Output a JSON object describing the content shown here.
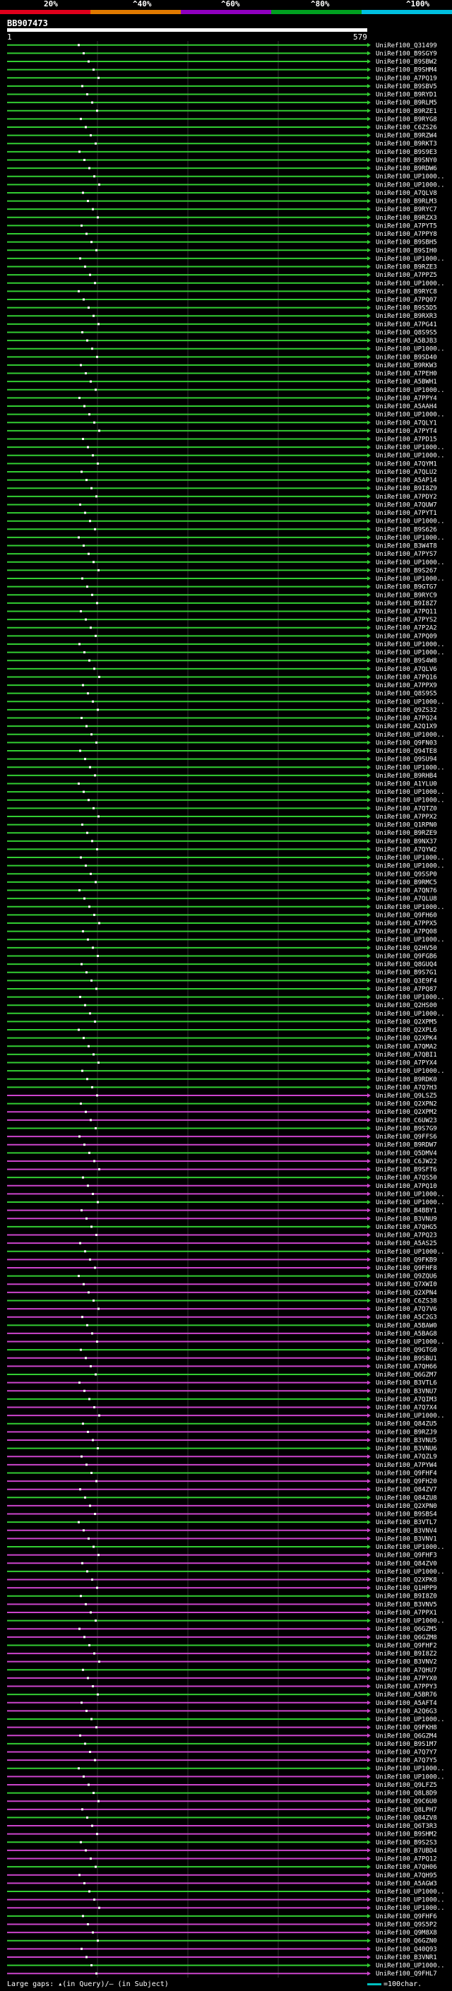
{
  "scale": {
    "labels": [
      "20%",
      "^40%",
      "^60%",
      "^80%",
      "^100%"
    ],
    "colors": [
      "#e0001c",
      "#e07a00",
      "#9000c0",
      "#00a020",
      "#00c0e0"
    ]
  },
  "query": {
    "title": "BB907473",
    "start_label": "1",
    "end_label": "579"
  },
  "legend": {
    "text": "Large gaps: ▴(in Query)/– (in Subject)",
    "right_text": "=100char."
  },
  "colors": {
    "green": "#32cd32",
    "magenta": "#cc44cc"
  },
  "chart_data": {
    "type": "alignment",
    "query_length": 579,
    "hits": [
      "Q31499",
      "B9SGY9",
      "B9SBW2",
      "B9SHM4",
      "A7PQ19",
      "B9SBV5",
      "B9RYD1",
      "B9RLM5",
      "B9RZE1",
      "B9RYG8",
      "C6ZS26",
      "B9RZW4",
      "B9RKT3",
      "B9S9E3",
      "B9SNY0",
      "B9RDW6",
      "UP1000..",
      "UP1000..",
      "A7QLV8",
      "B9RLM3",
      "B9RYC7",
      "B9RZX3",
      "A7PYT5",
      "A7PPY8",
      "B9SBH5",
      "B9SIH0",
      "UP1000..",
      "B9RZE3",
      "A7PPZ5",
      "UP1000..",
      "B9RYC8",
      "A7PQ07",
      "B9S5D5",
      "B9RXR3",
      "A7PG41",
      "Q8S9S5",
      "A5BJB3",
      "UP1000..",
      "B9SD40",
      "B9RKW3",
      "A7PEH0",
      "A5BWH1",
      "UP1000..",
      "A7PPY4",
      "A5AAH4",
      "UP1000..",
      "A7QLY1",
      "A7PYT4",
      "A7PD15",
      "UP1000..",
      "UP1000..",
      "A7QYM1",
      "A7QLU2",
      "A5AP14",
      "B9I8Z9",
      "A7PDY2",
      "A7QUW7",
      "A7PYT1",
      "UP1000..",
      "B9S626",
      "UP1000..",
      "B3W4T8",
      "A7PYS7",
      "UP1000..",
      "B9S267",
      "UP1000..",
      "B9GTG7",
      "B9RYC9",
      "B9I8Z7",
      "A7PQ11",
      "A7PYS2",
      "A7P2A2",
      "A7PQ09",
      "UP1000..",
      "UP1000..",
      "B9S4W8",
      "A7QLV6",
      "A7PQ16",
      "A7PPX9",
      "Q8S9S5",
      "UP1000..",
      "Q9ZS32",
      "A7PQ24",
      "A2Q1X9",
      "UP1000..",
      "Q9FN03",
      "Q94TE8",
      "Q9SU94",
      "UP1000..",
      "B9RHB4",
      "A1YLU0",
      "UP1000..",
      "UP1000..",
      "A7QTZ0",
      "A7PPX2",
      "Q1RPN0",
      "B9RZE9",
      "B9NX37",
      "A7QYW2",
      "UP1000..",
      "UP1000..",
      "Q9SSP0",
      "B9RMC5",
      "A7QN76",
      "A7QLU8",
      "UP1000..",
      "Q9FH60",
      "A7PPX5",
      "A7PQ08",
      "UP1000..",
      "Q2HV50",
      "Q9FGB6",
      "Q8GUQ4",
      "B9S7G1",
      "Q3E9F4",
      "A7PQ87",
      "UP1000..",
      "Q2HS00",
      "UP1000..",
      "Q2XPM5",
      "Q2XPL6",
      "Q2XPK4",
      "A7QMA2",
      "A7QBI1",
      "A7PYX4",
      "UP1000..",
      "B9RDK0",
      "A7Q7H3",
      "Q9LSZ5",
      "Q2XPN2",
      "Q2XPM2",
      "C6UW23",
      "B9S7G9",
      "Q9FFS6",
      "B9RDW7",
      "Q5DMV4",
      "C6JW22",
      "B9SFT6",
      "A7QS50",
      "A7PQ10",
      "UP1000..",
      "UP1000..",
      "B4BBY1",
      "B3VNU9",
      "A7QHG5",
      "A7PQ23",
      "A5AS25",
      "UP1000..",
      "Q9FKB9",
      "Q9FHF8",
      "Q9ZQU6",
      "Q7XWI0",
      "Q2XPN4",
      "C6ZS38",
      "A7Q7V6",
      "A5C2G3",
      "A5BAW0",
      "A5BAG8",
      "UP1000..",
      "Q9GTG0",
      "B9SBU1",
      "A7QH66",
      "Q6GZM7",
      "B3VTL6",
      "B3VNU7",
      "A7QIM3",
      "A7Q7X4",
      "UP1000..",
      "Q84ZU5",
      "B9RZJ9",
      "B3VNU5",
      "B3VNU6",
      "A7QZL9",
      "A7PYW4",
      "Q9FHF4",
      "Q9FH20",
      "Q84ZV7",
      "Q84ZU8",
      "Q2XPN0",
      "B9SBS4",
      "B3VTL7",
      "B3VNV4",
      "B3VNV1",
      "UP1000..",
      "Q9FHF3",
      "Q84ZV0",
      "UP1000..",
      "Q2XPK8",
      "Q1HPP9",
      "B9I8Z0",
      "B3VNV5",
      "A7PPX1",
      "UP1000..",
      "Q6GZM5",
      "Q6GZM8",
      "Q9FHF2",
      "B9I8Z2",
      "B3VNV2",
      "A7QHU7",
      "A7PYX0",
      "A7PPY3",
      "A5BR76",
      "A5AFT4",
      "A2Q6G3",
      "UP1000..",
      "Q9FKH8",
      "Q6GZM4",
      "B9S1M7",
      "A7Q7Y7",
      "A7Q7Y5",
      "UP1000..",
      "UP1000..",
      "Q9LFZ5",
      "Q8L8D9",
      "Q9C6U0",
      "Q8LPH7",
      "Q84ZV8",
      "Q6T3R3",
      "B9SHM2",
      "B9S2S3",
      "B7UBD4",
      "A7PQ12",
      "A7QH06",
      "A7QH95",
      "A5AGW3",
      "UP1000..",
      "UP1000..",
      "UP1000..",
      "Q9FHF6",
      "Q9S5P2",
      "Q9M8X8",
      "Q6GZN0",
      "Q40Q93",
      "B3VNR1",
      "UP1000..",
      "Q9FHL7"
    ]
  }
}
